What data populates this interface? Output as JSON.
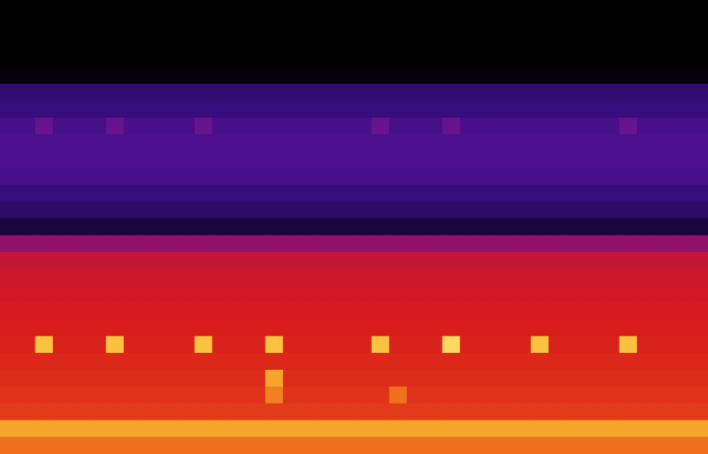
{
  "chart_data": {
    "type": "heatmap",
    "tick_labels": false,
    "value_range": [
      0,
      100
    ],
    "cells": [
      [
        0,
        0,
        0,
        0,
        0,
        0,
        0,
        0,
        0,
        0,
        0,
        0,
        0,
        0,
        0,
        0,
        0,
        0,
        0,
        0,
        0,
        0,
        0,
        0,
        0,
        0,
        0,
        0,
        0,
        0,
        0,
        0,
        0,
        0,
        0,
        0,
        0,
        0,
        0,
        0
      ],
      [
        0,
        0,
        0,
        0,
        0,
        0,
        0,
        0,
        0,
        0,
        0,
        0,
        0,
        0,
        0,
        0,
        0,
        0,
        0,
        0,
        0,
        0,
        0,
        0,
        0,
        0,
        0,
        0,
        0,
        0,
        0,
        0,
        0,
        0,
        0,
        0,
        0,
        0,
        0,
        0
      ],
      [
        0,
        0,
        0,
        0,
        0,
        0,
        0,
        0,
        0,
        0,
        0,
        0,
        0,
        0,
        0,
        0,
        0,
        0,
        0,
        0,
        0,
        0,
        0,
        0,
        0,
        0,
        0,
        0,
        0,
        0,
        0,
        0,
        0,
        0,
        0,
        0,
        0,
        0,
        0,
        0
      ],
      [
        0,
        0,
        0,
        0,
        0,
        0,
        0,
        0,
        0,
        0,
        0,
        0,
        0,
        0,
        0,
        0,
        0,
        0,
        0,
        0,
        0,
        0,
        0,
        0,
        0,
        0,
        0,
        0,
        0,
        0,
        0,
        0,
        0,
        0,
        0,
        0,
        0,
        0,
        0,
        0
      ],
      [
        2,
        2,
        2,
        2,
        2,
        2,
        2,
        2,
        2,
        2,
        2,
        2,
        2,
        2,
        2,
        2,
        2,
        2,
        2,
        2,
        2,
        2,
        2,
        2,
        2,
        2,
        2,
        2,
        2,
        2,
        2,
        2,
        2,
        2,
        2,
        2,
        2,
        2,
        2,
        2
      ],
      [
        22,
        22,
        22,
        22,
        22,
        22,
        22,
        22,
        22,
        22,
        22,
        22,
        22,
        22,
        22,
        22,
        22,
        22,
        22,
        22,
        22,
        22,
        22,
        22,
        22,
        22,
        22,
        22,
        22,
        22,
        22,
        22,
        22,
        22,
        22,
        22,
        22,
        22,
        22,
        22
      ],
      [
        24,
        24,
        24,
        24,
        24,
        24,
        24,
        24,
        24,
        24,
        24,
        24,
        24,
        24,
        24,
        24,
        24,
        24,
        24,
        24,
        24,
        24,
        24,
        24,
        24,
        24,
        24,
        24,
        24,
        24,
        24,
        24,
        24,
        24,
        24,
        24,
        24,
        24,
        24,
        24
      ],
      [
        30,
        30,
        40,
        30,
        30,
        30,
        40,
        30,
        30,
        30,
        30,
        40,
        30,
        30,
        30,
        30,
        30,
        30,
        30,
        30,
        30,
        40,
        30,
        30,
        30,
        40,
        30,
        30,
        30,
        30,
        30,
        30,
        30,
        30,
        30,
        40,
        30,
        30,
        30,
        30
      ],
      [
        32,
        32,
        32,
        32,
        32,
        32,
        32,
        32,
        32,
        32,
        32,
        32,
        32,
        32,
        32,
        32,
        32,
        32,
        32,
        32,
        32,
        32,
        32,
        32,
        32,
        32,
        32,
        32,
        32,
        32,
        32,
        32,
        32,
        32,
        32,
        32,
        32,
        32,
        32,
        32
      ],
      [
        32,
        32,
        32,
        32,
        32,
        32,
        32,
        32,
        32,
        32,
        32,
        32,
        32,
        32,
        32,
        32,
        32,
        32,
        32,
        32,
        32,
        32,
        32,
        32,
        32,
        32,
        32,
        32,
        32,
        32,
        32,
        32,
        32,
        32,
        32,
        32,
        32,
        32,
        32,
        32
      ],
      [
        30,
        30,
        30,
        30,
        30,
        30,
        30,
        30,
        30,
        30,
        30,
        30,
        30,
        30,
        30,
        30,
        30,
        30,
        30,
        30,
        30,
        30,
        30,
        30,
        30,
        30,
        30,
        30,
        30,
        30,
        30,
        30,
        30,
        30,
        30,
        30,
        30,
        30,
        30,
        30
      ],
      [
        24,
        24,
        24,
        24,
        24,
        24,
        24,
        24,
        24,
        24,
        24,
        24,
        24,
        24,
        24,
        24,
        24,
        24,
        24,
        24,
        24,
        24,
        24,
        24,
        24,
        24,
        24,
        24,
        24,
        24,
        24,
        24,
        24,
        24,
        24,
        24,
        24,
        24,
        24,
        24
      ],
      [
        20,
        20,
        20,
        20,
        20,
        20,
        20,
        20,
        20,
        20,
        20,
        20,
        20,
        20,
        20,
        20,
        20,
        20,
        20,
        20,
        20,
        20,
        20,
        20,
        20,
        20,
        20,
        20,
        20,
        20,
        20,
        20,
        20,
        20,
        20,
        20,
        20,
        20,
        20,
        20
      ],
      [
        12,
        12,
        12,
        12,
        12,
        12,
        12,
        12,
        12,
        12,
        12,
        12,
        12,
        12,
        12,
        12,
        12,
        12,
        12,
        12,
        12,
        12,
        12,
        12,
        12,
        12,
        12,
        12,
        12,
        12,
        12,
        12,
        12,
        12,
        12,
        12,
        12,
        12,
        12,
        12
      ],
      [
        48,
        48,
        48,
        48,
        48,
        48,
        48,
        48,
        48,
        48,
        48,
        48,
        48,
        48,
        48,
        48,
        48,
        48,
        48,
        48,
        48,
        48,
        48,
        48,
        48,
        48,
        48,
        48,
        48,
        48,
        48,
        48,
        48,
        48,
        48,
        48,
        48,
        48,
        48,
        48
      ],
      [
        58,
        58,
        58,
        58,
        58,
        58,
        58,
        58,
        58,
        58,
        58,
        58,
        58,
        58,
        58,
        58,
        58,
        58,
        58,
        58,
        58,
        58,
        58,
        58,
        58,
        58,
        58,
        58,
        58,
        58,
        58,
        58,
        58,
        58,
        58,
        58,
        58,
        58,
        58,
        58
      ],
      [
        60,
        60,
        60,
        60,
        60,
        60,
        60,
        60,
        60,
        60,
        60,
        60,
        60,
        60,
        60,
        60,
        60,
        60,
        60,
        60,
        60,
        60,
        60,
        60,
        60,
        60,
        60,
        60,
        60,
        60,
        60,
        60,
        60,
        60,
        60,
        60,
        60,
        60,
        60,
        60
      ],
      [
        61,
        61,
        61,
        61,
        61,
        61,
        61,
        61,
        61,
        61,
        61,
        61,
        61,
        61,
        61,
        61,
        61,
        61,
        61,
        61,
        61,
        61,
        61,
        61,
        61,
        61,
        61,
        61,
        61,
        61,
        61,
        61,
        61,
        61,
        61,
        61,
        61,
        61,
        61,
        61
      ],
      [
        62,
        62,
        62,
        62,
        62,
        62,
        62,
        62,
        62,
        62,
        62,
        62,
        62,
        62,
        62,
        62,
        62,
        62,
        62,
        62,
        62,
        62,
        62,
        62,
        62,
        62,
        62,
        62,
        62,
        62,
        62,
        62,
        62,
        62,
        62,
        62,
        62,
        62,
        62,
        62
      ],
      [
        63,
        63,
        63,
        63,
        63,
        63,
        63,
        63,
        63,
        63,
        63,
        63,
        63,
        63,
        63,
        63,
        63,
        63,
        63,
        63,
        63,
        63,
        63,
        63,
        63,
        63,
        63,
        63,
        63,
        63,
        63,
        63,
        63,
        63,
        63,
        63,
        63,
        63,
        63,
        63
      ],
      [
        64,
        64,
        90,
        64,
        64,
        64,
        90,
        64,
        64,
        64,
        64,
        90,
        64,
        64,
        64,
        90,
        64,
        64,
        64,
        64,
        64,
        90,
        64,
        64,
        64,
        95,
        64,
        64,
        64,
        64,
        90,
        64,
        64,
        64,
        64,
        90,
        64,
        64,
        64,
        64
      ],
      [
        65,
        65,
        65,
        65,
        65,
        65,
        65,
        65,
        65,
        65,
        65,
        65,
        65,
        65,
        65,
        65,
        65,
        65,
        65,
        65,
        65,
        65,
        65,
        65,
        65,
        65,
        65,
        65,
        65,
        65,
        65,
        65,
        65,
        65,
        65,
        65,
        65,
        65,
        65,
        65
      ],
      [
        66,
        66,
        66,
        66,
        66,
        66,
        66,
        66,
        66,
        66,
        66,
        66,
        66,
        66,
        66,
        85,
        66,
        66,
        66,
        66,
        66,
        66,
        66,
        66,
        66,
        66,
        66,
        66,
        66,
        66,
        66,
        66,
        66,
        66,
        66,
        66,
        66,
        66,
        66,
        66
      ],
      [
        67,
        67,
        67,
        67,
        67,
        67,
        67,
        67,
        67,
        67,
        67,
        67,
        67,
        67,
        67,
        80,
        67,
        67,
        67,
        67,
        67,
        67,
        78,
        67,
        67,
        67,
        67,
        67,
        67,
        67,
        67,
        67,
        67,
        67,
        67,
        67,
        67,
        67,
        67,
        67
      ],
      [
        69,
        69,
        69,
        69,
        69,
        69,
        69,
        69,
        69,
        69,
        69,
        69,
        69,
        69,
        69,
        69,
        69,
        69,
        69,
        69,
        69,
        69,
        69,
        69,
        69,
        69,
        69,
        69,
        69,
        69,
        69,
        69,
        69,
        69,
        69,
        69,
        69,
        69,
        69,
        69
      ],
      [
        85,
        85,
        85,
        85,
        85,
        85,
        85,
        85,
        85,
        85,
        85,
        85,
        85,
        85,
        85,
        85,
        85,
        85,
        85,
        85,
        85,
        85,
        85,
        85,
        85,
        85,
        85,
        85,
        85,
        85,
        85,
        85,
        85,
        85,
        85,
        85,
        85,
        85,
        85,
        85
      ],
      [
        78,
        78,
        78,
        78,
        78,
        78,
        78,
        78,
        78,
        78,
        78,
        78,
        78,
        78,
        78,
        78,
        78,
        78,
        78,
        78,
        78,
        78,
        78,
        78,
        78,
        78,
        78,
        78,
        78,
        78,
        78,
        78,
        78,
        78,
        78,
        78,
        78,
        78,
        78,
        78
      ]
    ]
  }
}
